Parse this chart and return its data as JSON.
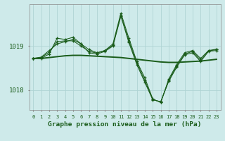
{
  "bg_color": "#ceeaea",
  "grid_color": "#afd4d4",
  "line_color": "#1a5c1a",
  "title": "Graphe pression niveau de la mer (hPa)",
  "ylim": [
    1017.55,
    1019.95
  ],
  "xlim": [
    -0.5,
    23.5
  ],
  "x_ticks": [
    0,
    1,
    2,
    3,
    4,
    5,
    6,
    7,
    8,
    9,
    10,
    11,
    12,
    13,
    14,
    15,
    16,
    17,
    18,
    19,
    20,
    21,
    22,
    23
  ],
  "y_ticks": [
    1018.0,
    1019.0
  ],
  "series1": [
    1018.72,
    1018.72,
    1018.82,
    1019.18,
    1019.15,
    1019.2,
    1019.05,
    1018.85,
    1018.82,
    1018.88,
    1019.0,
    1019.68,
    1019.08,
    1018.58,
    1018.18,
    1017.78,
    1017.74,
    1018.2,
    1018.52,
    1018.8,
    1018.85,
    1018.65,
    1018.88,
    1018.9
  ],
  "series2": [
    1018.72,
    1018.75,
    1018.9,
    1019.05,
    1019.1,
    1019.15,
    1019.05,
    1018.92,
    1018.85,
    1018.9,
    1019.05,
    1019.75,
    1019.18,
    1018.65,
    1018.28,
    1017.8,
    1017.72,
    1018.25,
    1018.58,
    1018.85,
    1018.9,
    1018.72,
    1018.9,
    1018.93
  ],
  "series3": [
    1018.72,
    1018.74,
    1018.86,
    1019.1,
    1019.12,
    1019.12,
    1019.0,
    1018.88,
    1018.84,
    1018.9,
    1019.02,
    1019.7,
    1019.12,
    1018.62,
    1018.22,
    1017.79,
    1017.73,
    1018.22,
    1018.55,
    1018.82,
    1018.88,
    1018.68,
    1018.89,
    1018.92
  ],
  "series_smooth": [
    1018.72,
    1018.72,
    1018.74,
    1018.76,
    1018.78,
    1018.79,
    1018.79,
    1018.78,
    1018.77,
    1018.76,
    1018.75,
    1018.74,
    1018.72,
    1018.7,
    1018.68,
    1018.66,
    1018.64,
    1018.63,
    1018.63,
    1018.64,
    1018.65,
    1018.66,
    1018.68,
    1018.7
  ]
}
